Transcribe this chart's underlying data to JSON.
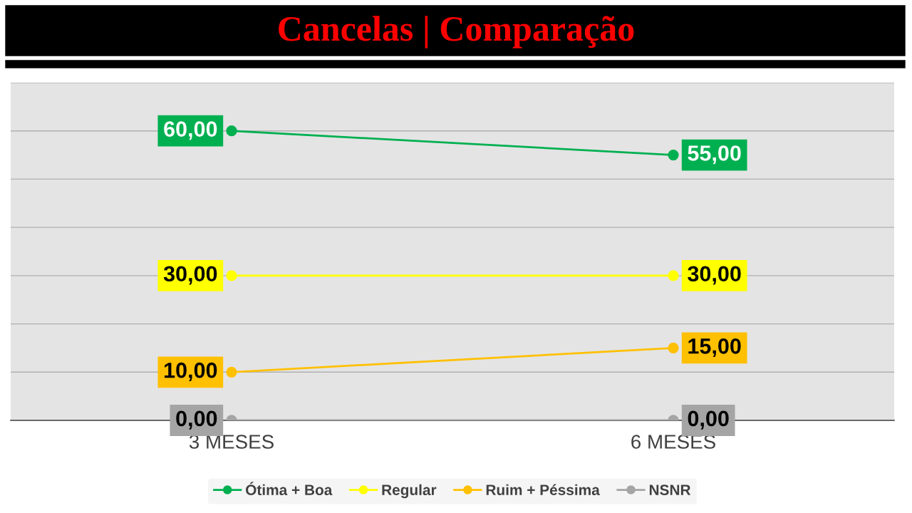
{
  "chart_data": {
    "type": "line",
    "title": "Cancelas | Comparação",
    "categories": [
      "3 MESES",
      "6 MESES"
    ],
    "series": [
      {
        "name": "Ótima + Boa",
        "color": "#00b050",
        "values": [
          60,
          55
        ],
        "value_labels": [
          "60,00",
          "55,00"
        ]
      },
      {
        "name": "Regular",
        "color": "#ffff00",
        "values": [
          30,
          30
        ],
        "value_labels": [
          "30,00",
          "30,00"
        ]
      },
      {
        "name": "Ruim + Péssima",
        "color": "#ffc000",
        "values": [
          10,
          15
        ],
        "value_labels": [
          "10,00",
          "15,00"
        ]
      },
      {
        "name": "NSNR",
        "color": "#a5a5a5",
        "values": [
          0,
          0
        ],
        "value_labels": [
          "0,00",
          "0,00"
        ]
      }
    ],
    "ylim": [
      0,
      70
    ],
    "yticks": [
      {
        "value": 0,
        "label": null
      },
      {
        "value": 10,
        "label": null
      },
      {
        "value": 20,
        "label": null
      },
      {
        "value": 30,
        "label": null
      },
      {
        "value": 40,
        "label": null
      },
      {
        "value": 50,
        "label": null
      },
      {
        "value": 60,
        "label": null
      },
      {
        "value": 70,
        "label": null
      }
    ],
    "tick_labels": "x",
    "grid": "y",
    "legend": "bottom",
    "marker": "circle",
    "line_style": "solid"
  }
}
